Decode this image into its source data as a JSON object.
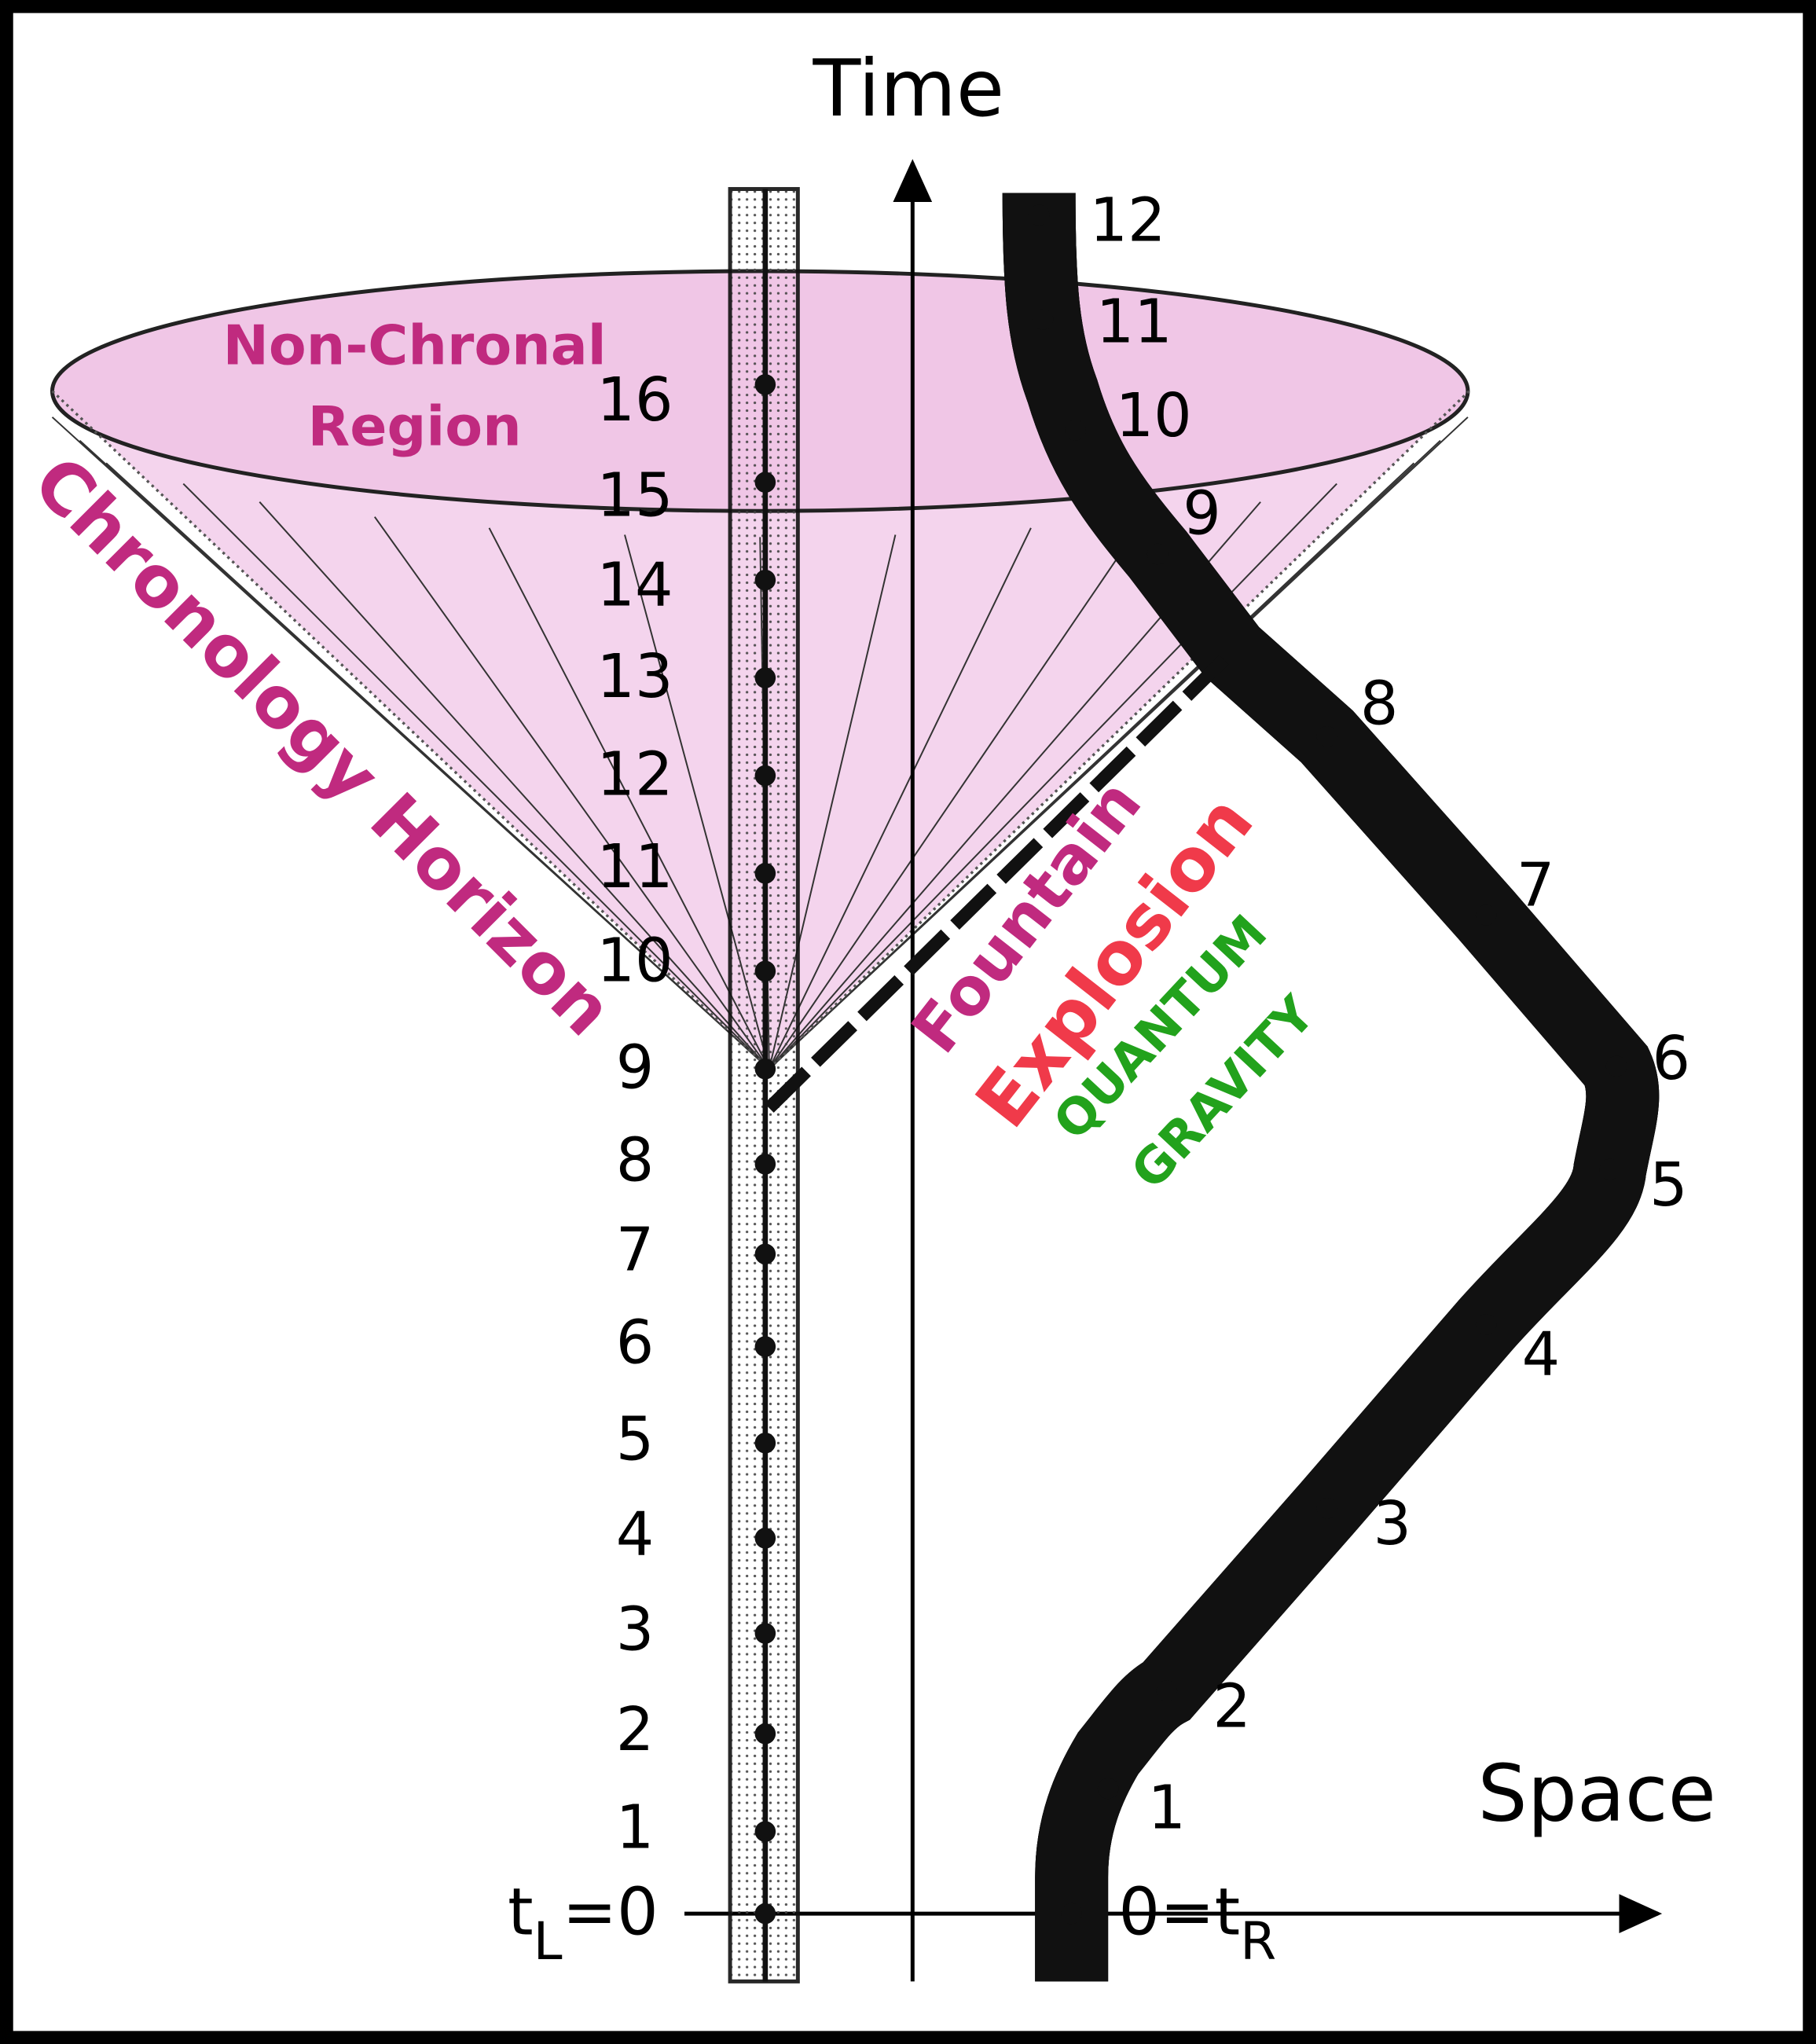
{
  "axes": {
    "time": "Time",
    "space": "Space"
  },
  "regions": {
    "non_chronal": [
      "Non-Chronal",
      "Region"
    ],
    "horizon": "Chronology Horizon"
  },
  "annotations": {
    "fountain": "Fountain",
    "explosion": "Explosion",
    "quantum": "QUANTUM",
    "gravity": "GRAVITY"
  },
  "left_worldline": {
    "origin": [
      "t",
      "L",
      "=0"
    ],
    "ticks": [
      "1",
      "2",
      "3",
      "4",
      "5",
      "6",
      "7",
      "8",
      "9",
      "10",
      "11",
      "12",
      "13",
      "14",
      "15",
      "16"
    ]
  },
  "right_worldline": {
    "origin": [
      "0=t",
      "R"
    ],
    "ticks": [
      "1",
      "2",
      "3",
      "4",
      "5",
      "6",
      "7",
      "8",
      "9",
      "10",
      "11",
      "12"
    ]
  }
}
